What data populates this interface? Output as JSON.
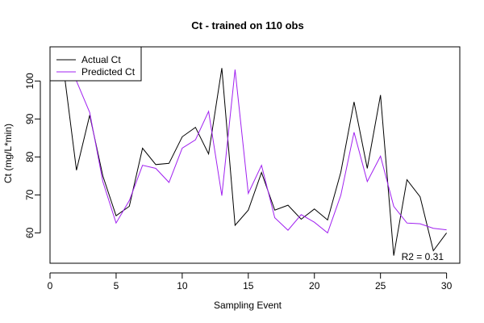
{
  "chart_data": {
    "type": "line",
    "title": "Ct - trained on 110 obs",
    "xlabel": "Sampling Event",
    "ylabel": "Ct (mg/L*min)",
    "xlim": [
      0,
      31
    ],
    "ylim": [
      52,
      109
    ],
    "x_ticks": [
      0,
      5,
      10,
      15,
      20,
      25,
      30
    ],
    "y_ticks": [
      60,
      70,
      80,
      90,
      100
    ],
    "grid": false,
    "legend_position": "top-left",
    "annotation": "R2 = 0.31",
    "x": [
      1,
      2,
      3,
      4,
      5,
      6,
      7,
      8,
      9,
      10,
      11,
      12,
      13,
      14,
      15,
      16,
      17,
      18,
      19,
      20,
      21,
      22,
      23,
      24,
      25,
      26,
      27,
      28,
      29,
      30
    ],
    "series": [
      {
        "name": "Actual Ct",
        "color": "#000000",
        "values": [
          104.0,
          76.5,
          91.0,
          75.0,
          64.5,
          67.0,
          82.3,
          78.0,
          78.3,
          85.3,
          87.8,
          80.8,
          103.4,
          62.0,
          66.0,
          75.9,
          66.0,
          67.3,
          63.6,
          66.3,
          63.4,
          76.0,
          94.5,
          77.0,
          96.3,
          54.0,
          74.0,
          69.5,
          55.3,
          60.0
        ]
      },
      {
        "name": "Predicted Ct",
        "color": "#A020F0",
        "values": [
          105.5,
          100.0,
          91.7,
          73.5,
          62.6,
          68.5,
          77.8,
          77.0,
          73.3,
          82.3,
          84.5,
          92.0,
          69.8,
          103.0,
          70.4,
          77.8,
          64.0,
          60.7,
          64.8,
          62.8,
          60.0,
          69.9,
          86.5,
          73.5,
          80.2,
          67.0,
          62.6,
          62.4,
          61.2,
          60.8
        ]
      }
    ]
  }
}
